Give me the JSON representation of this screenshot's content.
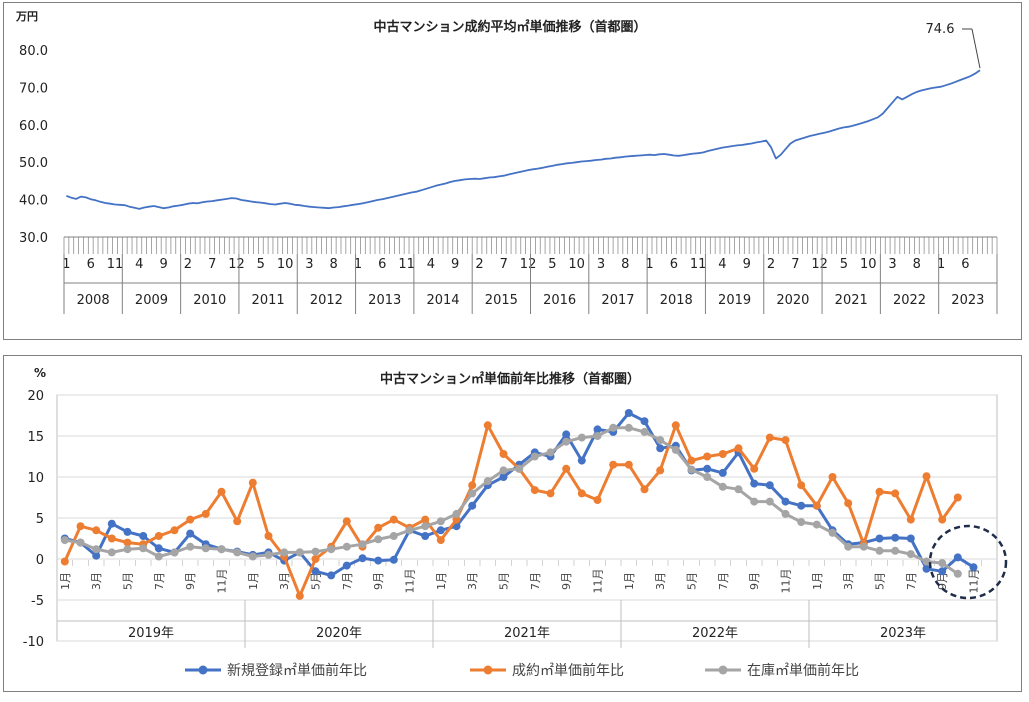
{
  "chart_data": [
    {
      "type": "line",
      "title": "中古マンション成約平均㎡単価推移（首都圏）",
      "ylabel": "万円",
      "ylim": [
        30,
        80
      ],
      "yticks": [
        "30.0",
        "40.0",
        "50.0",
        "60.0",
        "70.0",
        "80.0"
      ],
      "grid": false,
      "annotation": "74.6",
      "years": [
        "2008",
        "2009",
        "2010",
        "2011",
        "2012",
        "2013",
        "2014",
        "2015",
        "2016",
        "2017",
        "2018",
        "2019",
        "2020",
        "2021",
        "2022",
        "2023"
      ],
      "month_ticks": [
        "1",
        "6",
        "11",
        "4",
        "9",
        "2",
        "7",
        "12",
        "5",
        "10",
        "3",
        "8",
        "1",
        "6",
        "11",
        "4",
        "9",
        "2",
        "7",
        "12",
        "5",
        "10",
        "3",
        "8",
        "1",
        "6",
        "11",
        "4",
        "9",
        "2",
        "7",
        "12",
        "5",
        "10",
        "3",
        "8",
        "1",
        "6"
      ],
      "x_start": "2008-01",
      "series": [
        {
          "color": "#4472C4",
          "values": [
            41,
            40.5,
            40.2,
            40.8,
            40.6,
            40.1,
            39.8,
            39.4,
            39.1,
            38.9,
            38.7,
            38.6,
            38.5,
            38.1,
            37.8,
            37.5,
            37.9,
            38.1,
            38.3,
            38.0,
            37.7,
            37.9,
            38.2,
            38.4,
            38.6,
            38.9,
            39.1,
            39.0,
            39.3,
            39.5,
            39.6,
            39.8,
            40.0,
            40.2,
            40.4,
            40.3,
            39.9,
            39.7,
            39.5,
            39.3,
            39.2,
            39.0,
            38.8,
            38.7,
            38.9,
            39.1,
            38.9,
            38.6,
            38.5,
            38.3,
            38.1,
            38.0,
            37.9,
            37.8,
            37.7,
            37.9,
            38.0,
            38.2,
            38.4,
            38.6,
            38.8,
            39.0,
            39.3,
            39.6,
            39.9,
            40.1,
            40.4,
            40.7,
            41.0,
            41.3,
            41.6,
            41.9,
            42.1,
            42.5,
            42.9,
            43.3,
            43.7,
            44.0,
            44.3,
            44.7,
            45.0,
            45.2,
            45.4,
            45.5,
            45.6,
            45.5,
            45.7,
            45.9,
            46.0,
            46.2,
            46.4,
            46.7,
            47.0,
            47.3,
            47.6,
            47.9,
            48.1,
            48.3,
            48.5,
            48.8,
            49.0,
            49.3,
            49.5,
            49.7,
            49.8,
            50.0,
            50.2,
            50.3,
            50.4,
            50.6,
            50.7,
            50.9,
            51.0,
            51.2,
            51.3,
            51.5,
            51.6,
            51.7,
            51.8,
            51.9,
            52.0,
            51.9,
            52.1,
            52.2,
            52.0,
            51.8,
            51.7,
            51.9,
            52.1,
            52.3,
            52.4,
            52.6,
            53.0,
            53.3,
            53.6,
            53.9,
            54.1,
            54.3,
            54.5,
            54.6,
            54.8,
            55.0,
            55.3,
            55.5,
            55.8,
            54.0,
            51.0,
            52.0,
            53.5,
            55.0,
            55.8,
            56.2,
            56.6,
            57.0,
            57.3,
            57.6,
            57.9,
            58.2,
            58.6,
            59.0,
            59.3,
            59.5,
            59.8,
            60.2,
            60.6,
            61.0,
            61.5,
            62.0,
            63.0,
            64.5,
            66.0,
            67.5,
            66.8,
            67.5,
            68.2,
            68.8,
            69.2,
            69.5,
            69.8,
            70.0,
            70.2,
            70.6,
            71.0,
            71.5,
            72.0,
            72.5,
            73.0,
            73.7,
            74.6
          ]
        }
      ]
    },
    {
      "type": "line",
      "title": "中古マンション㎡単価前年比推移（首都圏）",
      "ylabel": "%",
      "ylim": [
        -10,
        20
      ],
      "yticks": [
        "-10",
        "-5",
        "0",
        "5",
        "10",
        "15",
        "20"
      ],
      "grid": true,
      "years": [
        "2019年",
        "2020年",
        "2021年",
        "2022年",
        "2023年"
      ],
      "month_labels": [
        "1月",
        "3月",
        "5月",
        "7月",
        "9月",
        "11月"
      ],
      "x_start": "2019-01",
      "series": [
        {
          "name": "新規登録㎡単価前年比",
          "color": "#4472C4",
          "values": [
            2.5,
            2.0,
            0.4,
            4.3,
            3.3,
            2.8,
            1.3,
            0.8,
            3.1,
            1.8,
            1.2,
            0.9,
            0.5,
            0.8,
            -0.2,
            0.8,
            -1.5,
            -2.0,
            -0.8,
            0.1,
            -0.2,
            -0.1,
            3.5,
            2.8,
            3.5,
            4.0,
            6.5,
            9.0,
            10.0,
            11.5,
            13.0,
            12.5,
            15.2,
            12.0,
            15.8,
            15.5,
            17.8,
            16.8,
            13.5,
            13.8,
            10.8,
            11.0,
            10.5,
            13.0,
            9.2,
            9.0,
            7.0,
            6.5,
            6.5,
            3.5,
            1.8,
            2.0,
            2.5,
            2.6,
            2.5,
            -1.2,
            -1.5,
            0.2,
            -1.0
          ]
        },
        {
          "name": "成約㎡単価前年比",
          "color": "#ED7D31",
          "values": [
            -0.3,
            4.0,
            3.5,
            2.5,
            2.0,
            1.8,
            2.8,
            3.5,
            4.8,
            5.5,
            8.2,
            4.6,
            9.3,
            2.8,
            0.3,
            -4.5,
            0.0,
            1.5,
            4.6,
            1.5,
            3.8,
            4.8,
            3.8,
            4.8,
            2.3,
            4.8,
            9.0,
            16.3,
            12.8,
            11.0,
            8.4,
            8.0,
            11.0,
            8.0,
            7.2,
            11.5,
            11.5,
            8.5,
            10.8,
            16.3,
            12.0,
            12.5,
            12.8,
            13.5,
            11.0,
            14.8,
            14.5,
            9.0,
            6.5,
            10.0,
            6.8,
            1.8,
            8.2,
            8.0,
            4.8,
            10.1,
            4.8,
            7.5
          ]
        },
        {
          "name": "在庫㎡単価前年比",
          "color": "#A5A5A5",
          "values": [
            2.3,
            2.0,
            1.2,
            0.8,
            1.2,
            1.3,
            0.3,
            0.8,
            1.5,
            1.3,
            1.2,
            0.8,
            0.3,
            0.5,
            0.8,
            0.8,
            0.9,
            1.2,
            1.5,
            1.8,
            2.4,
            2.8,
            3.5,
            4.0,
            4.6,
            5.5,
            8.0,
            9.5,
            10.8,
            11.0,
            12.5,
            13.0,
            14.3,
            14.8,
            15.0,
            16.0,
            16.0,
            15.5,
            14.5,
            13.3,
            10.9,
            10.0,
            8.8,
            8.5,
            7.0,
            7.0,
            5.5,
            4.5,
            4.2,
            3.2,
            1.5,
            1.5,
            1.0,
            1.0,
            0.6,
            -0.3,
            -0.5,
            -1.8
          ]
        }
      ]
    }
  ]
}
